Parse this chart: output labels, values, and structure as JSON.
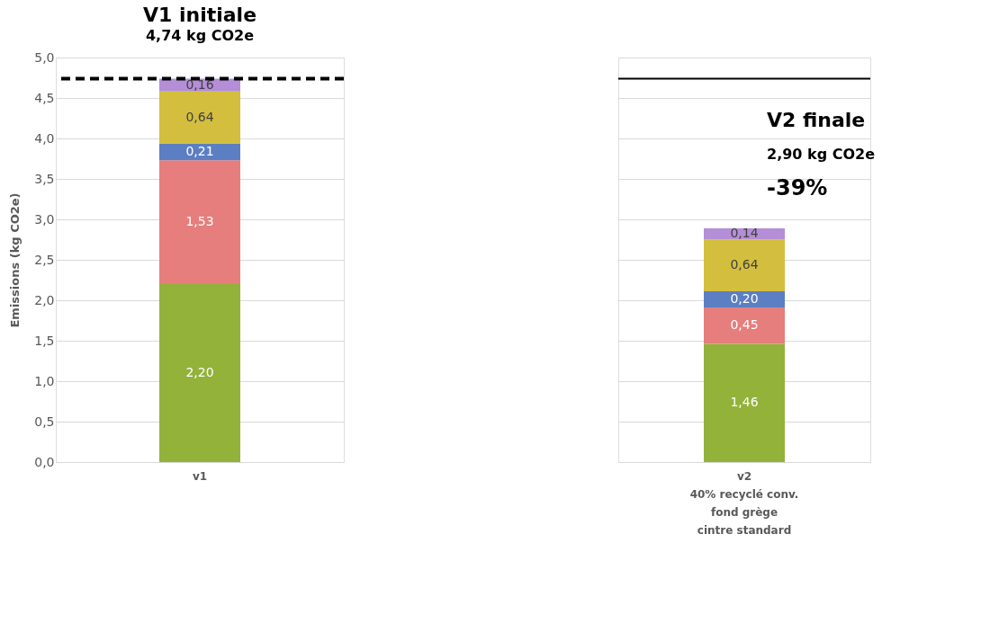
{
  "chart_data": [
    {
      "type": "bar",
      "stacked": true,
      "title": "V1 initiale",
      "subtitle": "4,74 kg CO2e",
      "ylabel": "Emissions (kg CO2e)",
      "categories": [
        "v1"
      ],
      "series": [
        {
          "color": "#92b23a",
          "values": [
            2.2
          ],
          "value_labels": [
            "2,20"
          ]
        },
        {
          "color": "#e57e7c",
          "values": [
            1.53
          ],
          "value_labels": [
            "1,53"
          ]
        },
        {
          "color": "#5b7fc2",
          "values": [
            0.21
          ],
          "value_labels": [
            "0,21"
          ]
        },
        {
          "color": "#d4be3e",
          "values": [
            0.64
          ],
          "value_labels": [
            "0,64"
          ]
        },
        {
          "color": "#b48ed6",
          "values": [
            0.16
          ],
          "value_labels": [
            "0,16"
          ]
        }
      ],
      "ylim": [
        0,
        5
      ],
      "yticks": [
        {
          "value": 0,
          "label": "0,0"
        },
        {
          "value": 0.5,
          "label": "0,5"
        },
        {
          "value": 1,
          "label": "1,0"
        },
        {
          "value": 1.5,
          "label": "1,5"
        },
        {
          "value": 2,
          "label": "2,0"
        },
        {
          "value": 2.5,
          "label": "2,5"
        },
        {
          "value": 3,
          "label": "3,0"
        },
        {
          "value": 3.5,
          "label": "3,5"
        },
        {
          "value": 4,
          "label": "4,0"
        },
        {
          "value": 4.5,
          "label": "4,5"
        },
        {
          "value": 5,
          "label": "5,0"
        }
      ],
      "grid": "y",
      "ref_lines": [
        {
          "axis": "y",
          "value": 4.74,
          "line_style": "dashed",
          "color": "#000000"
        }
      ]
    },
    {
      "type": "bar",
      "stacked": true,
      "title": "V2 finale",
      "categories": [
        "v2\n40% recyclé conv.\n\nfond grège\ncintre standard"
      ],
      "series": [
        {
          "color": "#92b23a",
          "values": [
            1.46
          ],
          "value_labels": [
            "1,46"
          ]
        },
        {
          "color": "#e57e7c",
          "values": [
            0.45
          ],
          "value_labels": [
            "0,45"
          ]
        },
        {
          "color": "#5b7fc2",
          "values": [
            0.2
          ],
          "value_labels": [
            "0,20"
          ]
        },
        {
          "color": "#d4be3e",
          "values": [
            0.64
          ],
          "value_labels": [
            "0,64"
          ]
        },
        {
          "color": "#b48ed6",
          "values": [
            0.14
          ],
          "value_labels": [
            "0,14"
          ]
        }
      ],
      "ylim": [
        0,
        5
      ],
      "yticks": [
        {
          "value": 0,
          "label": null
        },
        {
          "value": 0.5,
          "label": null
        },
        {
          "value": 1,
          "label": null
        },
        {
          "value": 1.5,
          "label": null
        },
        {
          "value": 2,
          "label": null
        },
        {
          "value": 2.5,
          "label": null
        },
        {
          "value": 3,
          "label": null
        },
        {
          "value": 3.5,
          "label": null
        },
        {
          "value": 4,
          "label": null
        },
        {
          "value": 4.5,
          "label": null
        },
        {
          "value": 5,
          "label": null
        }
      ],
      "tick_labels": "x",
      "grid": "y",
      "ref_lines": [
        {
          "axis": "y",
          "value": 4.74,
          "line_style": "solid",
          "color": "#000000"
        }
      ],
      "annotations": [
        "2,90 kg CO2e",
        "-39%"
      ]
    }
  ]
}
